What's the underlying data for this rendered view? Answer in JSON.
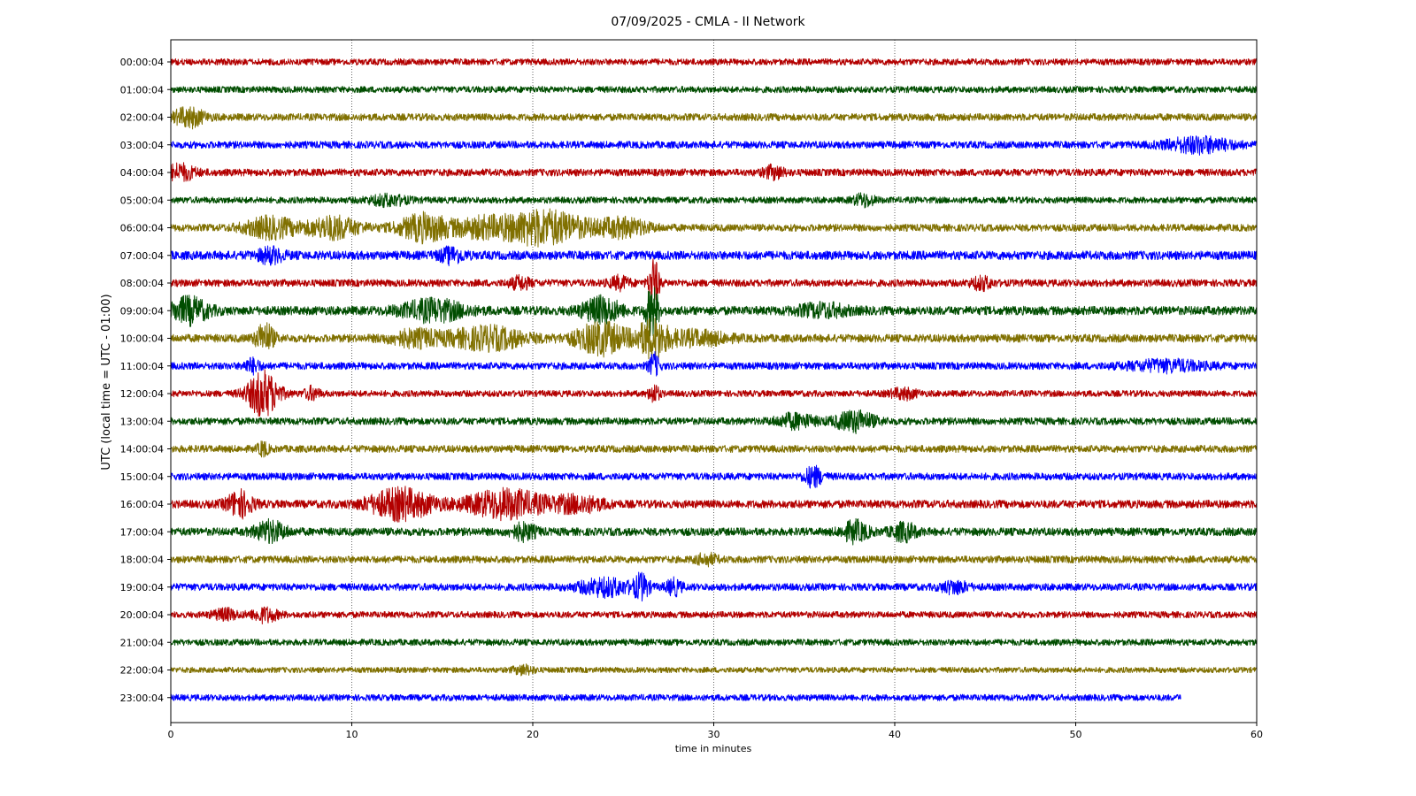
{
  "chart_data": {
    "type": "line",
    "title": "07/09/2025 - CMLA - II Network",
    "xlabel": "time in minutes",
    "ylabel": "UTC (local time = UTC - 01:00)",
    "xlim": [
      0,
      60
    ],
    "xticks": [
      0,
      10,
      20,
      30,
      40,
      50,
      60
    ],
    "grid": "vertical dotted",
    "colors": [
      "#b30000",
      "#004d00",
      "#807000",
      "#0000ff"
    ],
    "rows": [
      {
        "label": "00:00:04",
        "amp": 0.4,
        "events": [],
        "end": 60
      },
      {
        "label": "01:00:04",
        "amp": 0.4,
        "events": [],
        "end": 60
      },
      {
        "label": "02:00:04",
        "amp": 0.45,
        "events": [
          {
            "t": 1.0,
            "a": 1.1,
            "d": 1.2
          }
        ],
        "end": 60
      },
      {
        "label": "03:00:04",
        "amp": 0.45,
        "events": [
          {
            "t": 56.8,
            "a": 0.9,
            "d": 2.5
          }
        ],
        "end": 60
      },
      {
        "label": "04:00:04",
        "amp": 0.45,
        "events": [
          {
            "t": 0.5,
            "a": 0.9,
            "d": 1.2
          },
          {
            "t": 33.3,
            "a": 0.7,
            "d": 0.8
          }
        ],
        "end": 60
      },
      {
        "label": "05:00:04",
        "amp": 0.4,
        "events": [
          {
            "t": 12.0,
            "a": 0.6,
            "d": 1.5
          },
          {
            "t": 38.3,
            "a": 0.7,
            "d": 0.8
          }
        ],
        "end": 60
      },
      {
        "label": "06:00:04",
        "amp": 0.45,
        "events": [
          {
            "t": 5.5,
            "a": 1.2,
            "d": 2.0
          },
          {
            "t": 9.0,
            "a": 1.3,
            "d": 2.0
          },
          {
            "t": 14.0,
            "a": 1.6,
            "d": 2.0
          },
          {
            "t": 17.0,
            "a": 0.9,
            "d": 2.0
          },
          {
            "t": 20.5,
            "a": 2.1,
            "d": 3.5
          },
          {
            "t": 25.0,
            "a": 1.0,
            "d": 2.0
          }
        ],
        "end": 60
      },
      {
        "label": "07:00:04",
        "amp": 0.55,
        "events": [
          {
            "t": 5.5,
            "a": 0.8,
            "d": 1.0
          },
          {
            "t": 15.5,
            "a": 0.8,
            "d": 1.0
          }
        ],
        "end": 60
      },
      {
        "label": "08:00:04",
        "amp": 0.45,
        "events": [
          {
            "t": 19.3,
            "a": 0.7,
            "d": 0.8
          },
          {
            "t": 24.8,
            "a": 0.7,
            "d": 0.8
          },
          {
            "t": 26.7,
            "a": 2.8,
            "d": 0.4
          },
          {
            "t": 44.8,
            "a": 0.7,
            "d": 0.8
          }
        ],
        "end": 60
      },
      {
        "label": "09:00:04",
        "amp": 0.55,
        "events": [
          {
            "t": 1.0,
            "a": 1.5,
            "d": 1.5
          },
          {
            "t": 14.5,
            "a": 1.2,
            "d": 2.5
          },
          {
            "t": 23.8,
            "a": 1.5,
            "d": 1.5
          },
          {
            "t": 26.6,
            "a": 3.0,
            "d": 0.5
          },
          {
            "t": 36.0,
            "a": 0.7,
            "d": 2.0
          }
        ],
        "end": 60
      },
      {
        "label": "10:00:04",
        "amp": 0.5,
        "events": [
          {
            "t": 5.2,
            "a": 1.8,
            "d": 0.7
          },
          {
            "t": 13.5,
            "a": 0.9,
            "d": 2.0
          },
          {
            "t": 17.5,
            "a": 1.3,
            "d": 3.0
          },
          {
            "t": 23.8,
            "a": 1.9,
            "d": 2.0
          },
          {
            "t": 26.6,
            "a": 2.2,
            "d": 1.2
          },
          {
            "t": 29.0,
            "a": 0.8,
            "d": 2.5
          }
        ],
        "end": 60
      },
      {
        "label": "11:00:04",
        "amp": 0.45,
        "events": [
          {
            "t": 4.5,
            "a": 0.8,
            "d": 0.6
          },
          {
            "t": 26.7,
            "a": 1.4,
            "d": 0.4
          },
          {
            "t": 55.0,
            "a": 0.6,
            "d": 3.0
          }
        ],
        "end": 60
      },
      {
        "label": "12:00:04",
        "amp": 0.4,
        "events": [
          {
            "t": 5.1,
            "a": 2.8,
            "d": 1.2
          },
          {
            "t": 7.8,
            "a": 0.7,
            "d": 0.6
          },
          {
            "t": 26.7,
            "a": 1.1,
            "d": 0.4
          },
          {
            "t": 40.5,
            "a": 0.6,
            "d": 1.0
          }
        ],
        "end": 60
      },
      {
        "label": "13:00:04",
        "amp": 0.45,
        "events": [
          {
            "t": 34.5,
            "a": 0.8,
            "d": 1.5
          },
          {
            "t": 37.8,
            "a": 1.2,
            "d": 1.5
          }
        ],
        "end": 60
      },
      {
        "label": "14:00:04",
        "amp": 0.45,
        "events": [
          {
            "t": 5.1,
            "a": 0.8,
            "d": 0.4
          }
        ],
        "end": 60
      },
      {
        "label": "15:00:04",
        "amp": 0.45,
        "events": [
          {
            "t": 35.5,
            "a": 1.2,
            "d": 0.7
          }
        ],
        "end": 60
      },
      {
        "label": "16:00:04",
        "amp": 0.5,
        "events": [
          {
            "t": 3.8,
            "a": 1.5,
            "d": 1.0
          },
          {
            "t": 12.7,
            "a": 1.8,
            "d": 2.5
          },
          {
            "t": 18.5,
            "a": 1.7,
            "d": 3.0
          },
          {
            "t": 22.5,
            "a": 0.9,
            "d": 2.0
          }
        ],
        "end": 60
      },
      {
        "label": "17:00:04",
        "amp": 0.5,
        "events": [
          {
            "t": 5.5,
            "a": 1.2,
            "d": 1.2
          },
          {
            "t": 19.5,
            "a": 0.9,
            "d": 1.0
          },
          {
            "t": 37.8,
            "a": 1.2,
            "d": 1.0
          },
          {
            "t": 40.5,
            "a": 1.0,
            "d": 1.0
          }
        ],
        "end": 60
      },
      {
        "label": "18:00:04",
        "amp": 0.45,
        "events": [
          {
            "t": 29.6,
            "a": 0.6,
            "d": 0.8
          }
        ],
        "end": 60
      },
      {
        "label": "19:00:04",
        "amp": 0.45,
        "events": [
          {
            "t": 24.0,
            "a": 1.0,
            "d": 2.0
          },
          {
            "t": 26.0,
            "a": 1.4,
            "d": 0.6
          },
          {
            "t": 27.8,
            "a": 0.9,
            "d": 0.6
          },
          {
            "t": 43.3,
            "a": 0.7,
            "d": 1.0
          }
        ],
        "end": 60
      },
      {
        "label": "20:00:04",
        "amp": 0.4,
        "events": [
          {
            "t": 3.0,
            "a": 0.6,
            "d": 1.0
          },
          {
            "t": 5.2,
            "a": 0.8,
            "d": 1.0
          }
        ],
        "end": 60
      },
      {
        "label": "21:00:04",
        "amp": 0.4,
        "events": [],
        "end": 60
      },
      {
        "label": "22:00:04",
        "amp": 0.35,
        "events": [
          {
            "t": 19.5,
            "a": 0.5,
            "d": 0.8
          }
        ],
        "end": 60
      },
      {
        "label": "23:00:04",
        "amp": 0.4,
        "events": [],
        "end": 55.8
      }
    ]
  }
}
